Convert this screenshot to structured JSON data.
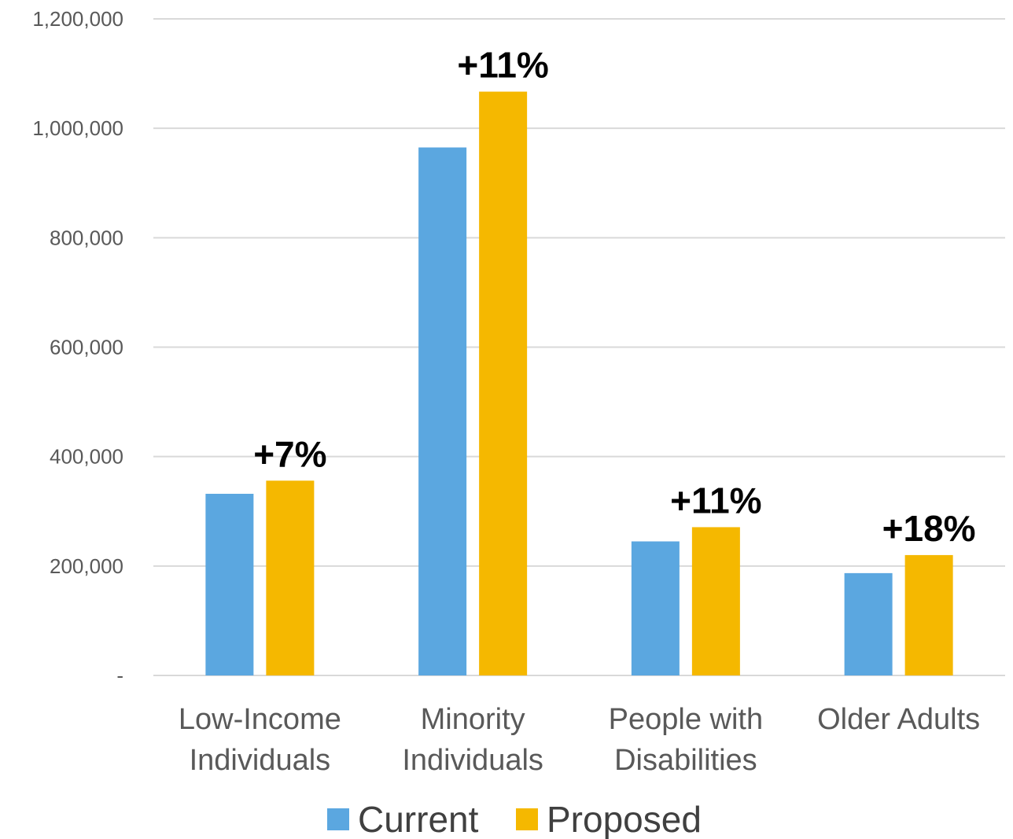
{
  "chart_data": {
    "type": "bar",
    "categories": [
      [
        "Low-Income",
        "Individuals"
      ],
      [
        "Minority",
        "Individuals"
      ],
      [
        "People with",
        "Disabilities"
      ],
      [
        "Older Adults"
      ]
    ],
    "series": [
      {
        "name": "Current",
        "color": "#5BA7E0",
        "values": [
          332000,
          965000,
          245000,
          187000
        ]
      },
      {
        "name": "Proposed",
        "color": "#F5B800",
        "values": [
          356000,
          1067000,
          271000,
          220000
        ]
      }
    ],
    "annotations": [
      "+7%",
      "+11%",
      "+11%",
      "+18%"
    ],
    "yticks": [
      {
        "value": 0,
        "label": "-"
      },
      {
        "value": 200000,
        "label": "200,000"
      },
      {
        "value": 400000,
        "label": "400,000"
      },
      {
        "value": 600000,
        "label": "600,000"
      },
      {
        "value": 800000,
        "label": "800,000"
      },
      {
        "value": 1000000,
        "label": "1,000,000"
      },
      {
        "value": 1200000,
        "label": "1,200,000"
      }
    ],
    "ylim": [
      0,
      1200000
    ],
    "grid": true,
    "legend_position": "bottom",
    "title": "",
    "xlabel": "",
    "ylabel": ""
  }
}
